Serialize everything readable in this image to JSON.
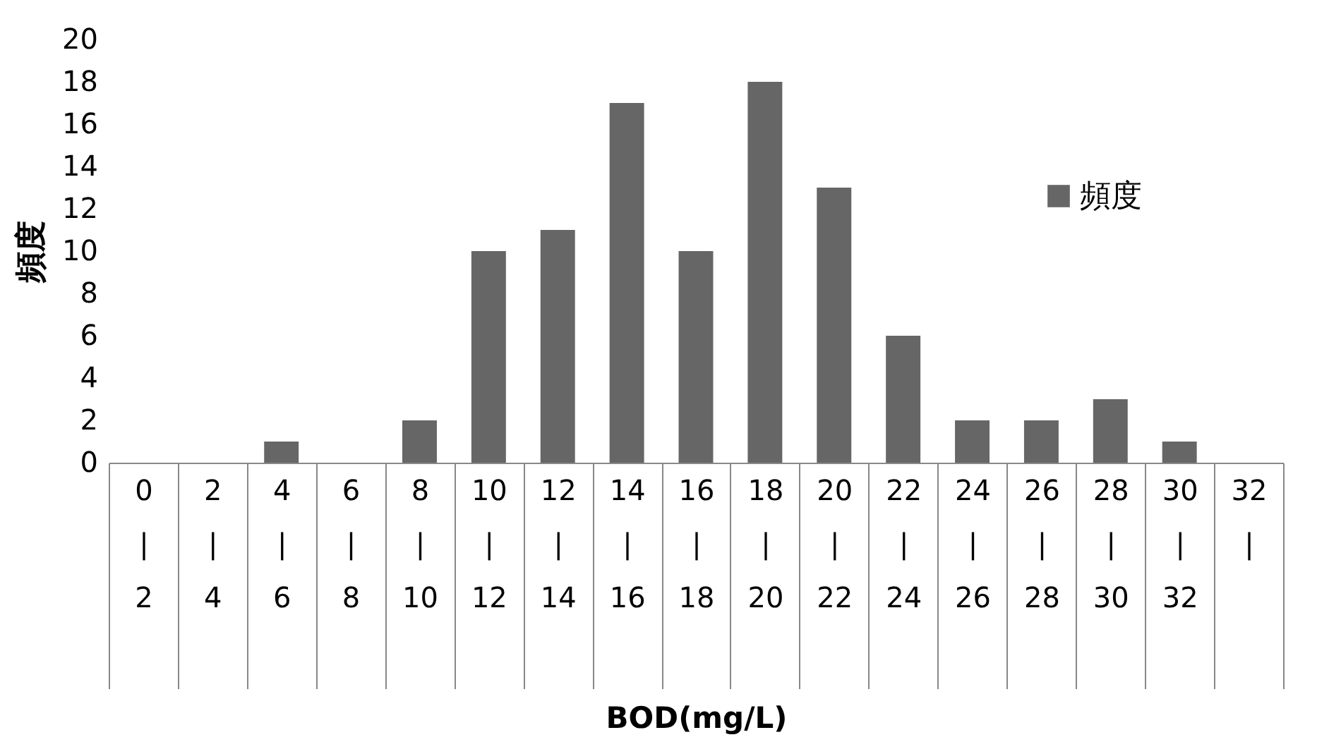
{
  "chart_data": {
    "type": "bar",
    "xlabel": "BOD(mg/L)",
    "ylabel": "頻度",
    "categories": [
      "0\n|\n2",
      "2\n|\n4",
      "4\n|\n6",
      "6\n|\n8",
      "8\n|\n10",
      "10\n|\n12",
      "12\n|\n14",
      "14\n|\n16",
      "16\n|\n18",
      "18\n|\n20",
      "20\n|\n22",
      "22\n|\n24",
      "24\n|\n26",
      "26\n|\n28",
      "28\n|\n30",
      "30\n|\n32",
      "32\n|"
    ],
    "series": [
      {
        "name": "頻度",
        "color": "#666666",
        "values": [
          0,
          0,
          1,
          0,
          2,
          10,
          11,
          17,
          10,
          18,
          13,
          6,
          2,
          2,
          3,
          1,
          0
        ]
      }
    ],
    "ylim": [
      0,
      20
    ],
    "yticks": [
      0,
      2,
      4,
      6,
      8,
      10,
      12,
      14,
      16,
      18,
      20
    ],
    "grid": false,
    "legend": "top right"
  }
}
